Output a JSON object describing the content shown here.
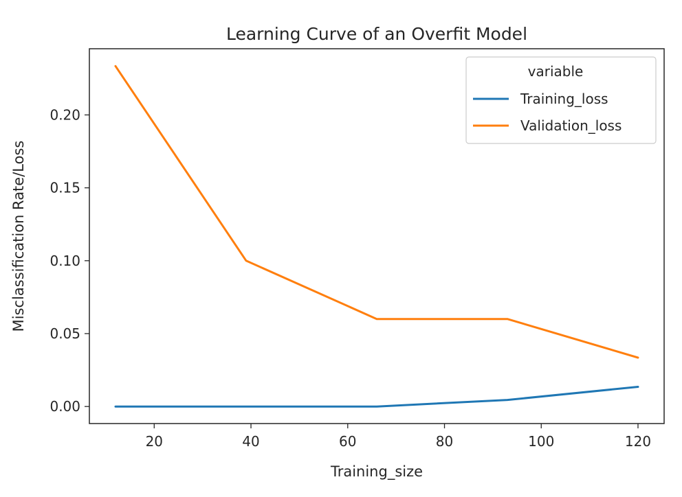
{
  "chart_data": {
    "type": "line",
    "title": "Learning Curve of an Overfit Model",
    "xlabel": "Training_size",
    "ylabel": "Misclassification Rate/Loss",
    "x": [
      12,
      39,
      66,
      93,
      120
    ],
    "xlim": [
      6.6,
      125.4
    ],
    "ylim": [
      -0.0117,
      0.2454
    ],
    "xticks": [
      20,
      40,
      60,
      80,
      100,
      120
    ],
    "xtick_labels": [
      "20",
      "40",
      "60",
      "80",
      "100",
      "120"
    ],
    "yticks": [
      0.0,
      0.05,
      0.1,
      0.15,
      0.2
    ],
    "ytick_labels": [
      "0.00",
      "0.05",
      "0.10",
      "0.15",
      "0.20"
    ],
    "grid": false,
    "legend": {
      "title": "variable",
      "placement": "top-right"
    },
    "series": [
      {
        "name": "Training_loss",
        "color": "#1f77b4",
        "values": [
          0.0,
          0.0,
          0.0,
          0.0045,
          0.0135
        ]
      },
      {
        "name": "Validation_loss",
        "color": "#ff7f0e",
        "values": [
          0.2335,
          0.1,
          0.06,
          0.06,
          0.0335
        ]
      }
    ]
  }
}
